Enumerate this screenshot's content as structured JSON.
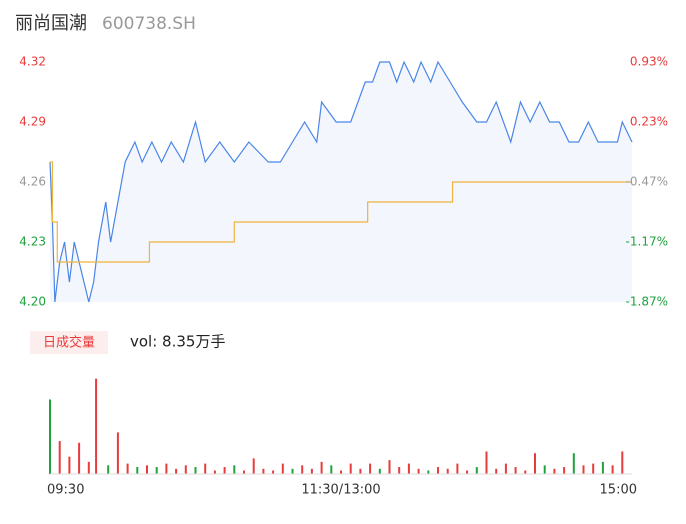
{
  "chart_data": [
    {
      "type": "line",
      "title": "丽尚国潮",
      "subtitle": "600738.SH",
      "xlim": [
        0,
        240
      ],
      "ylim": [
        4.2,
        4.32
      ],
      "yticks": [
        4.32,
        4.29,
        4.26,
        4.23,
        {
          "value": 4.2,
          "label": "4.20"
        }
      ],
      "ytick_colors": [
        "#e83b3b",
        "#e83b3b",
        "#999999",
        "#1fa23c",
        "#1fa23c"
      ],
      "y2lim": [
        -1.87,
        0.93
      ],
      "y2ticks": [
        {
          "value": 0.93,
          "label": "0.93%"
        },
        {
          "value": 0.23,
          "label": "0.23%"
        },
        {
          "value": -0.47,
          "label": "-0.47%"
        },
        {
          "value": -1.17,
          "label": "-1.17%"
        },
        {
          "value": -1.87,
          "label": "-1.87%"
        }
      ],
      "y2tick_colors": [
        "#e83b3b",
        "#e83b3b",
        "#999999",
        "#1fa23c",
        "#1fa23c"
      ],
      "grid": false,
      "series": [
        {
          "name": "price",
          "color": "#4a86e8",
          "area_color": "#f3f6fc",
          "x": [
            0,
            1,
            2,
            4,
            6,
            8,
            10,
            12,
            14,
            16,
            18,
            20,
            23,
            25,
            28,
            31,
            35,
            38,
            42,
            46,
            50,
            55,
            60,
            64,
            70,
            76,
            82,
            90,
            95,
            100,
            105,
            110,
            112,
            118,
            124,
            127,
            130,
            133,
            136,
            140,
            143,
            146,
            150,
            153,
            157,
            160,
            165,
            170,
            176,
            180,
            184,
            190,
            194,
            198,
            202,
            206,
            210,
            214,
            218,
            222,
            226,
            230,
            234,
            236,
            240
          ],
          "values": [
            4.27,
            4.24,
            4.2,
            4.22,
            4.23,
            4.21,
            4.23,
            4.22,
            4.21,
            4.2,
            4.21,
            4.23,
            4.25,
            4.23,
            4.25,
            4.27,
            4.28,
            4.27,
            4.28,
            4.27,
            4.28,
            4.27,
            4.29,
            4.27,
            4.28,
            4.27,
            4.28,
            4.27,
            4.27,
            4.28,
            4.29,
            4.28,
            4.3,
            4.29,
            4.29,
            4.3,
            4.31,
            4.31,
            4.32,
            4.32,
            4.31,
            4.32,
            4.31,
            4.32,
            4.31,
            4.32,
            4.31,
            4.3,
            4.29,
            4.29,
            4.3,
            4.28,
            4.3,
            4.29,
            4.3,
            4.29,
            4.29,
            4.28,
            4.28,
            4.29,
            4.28,
            4.28,
            4.28,
            4.29,
            4.28
          ]
        },
        {
          "name": "average",
          "color": "#f0b43c",
          "x": [
            0,
            1,
            3,
            40,
            41,
            75,
            76,
            130,
            131,
            165,
            166,
            240
          ],
          "values": [
            4.27,
            4.24,
            4.22,
            4.22,
            4.23,
            4.23,
            4.24,
            4.24,
            4.25,
            4.25,
            4.26,
            4.26
          ]
        }
      ]
    },
    {
      "type": "bar",
      "title": "日成交量",
      "annotation": "vol: 8.35万手",
      "xlim": [
        0,
        240
      ],
      "xticks": [
        {
          "value": 0,
          "label": "09:30"
        },
        {
          "value": 120,
          "label": "11:30/13:00"
        },
        {
          "value": 240,
          "label": "15:00"
        }
      ],
      "ylim": [
        0,
        3000
      ],
      "x": [
        0,
        4,
        8,
        12,
        16,
        19,
        24,
        28,
        32,
        36,
        40,
        44,
        48,
        52,
        56,
        60,
        64,
        68,
        72,
        76,
        80,
        84,
        88,
        92,
        96,
        100,
        104,
        108,
        112,
        116,
        120,
        124,
        128,
        132,
        136,
        140,
        144,
        148,
        152,
        156,
        160,
        164,
        168,
        172,
        176,
        180,
        184,
        188,
        192,
        196,
        200,
        204,
        208,
        212,
        216,
        220,
        224,
        228,
        232,
        236
      ],
      "values": [
        2150,
        950,
        500,
        900,
        350,
        2750,
        250,
        1200,
        300,
        200,
        250,
        200,
        300,
        150,
        250,
        200,
        300,
        100,
        200,
        250,
        100,
        450,
        150,
        100,
        300,
        150,
        250,
        150,
        350,
        250,
        100,
        300,
        150,
        300,
        150,
        400,
        200,
        300,
        150,
        100,
        200,
        150,
        300,
        100,
        200,
        650,
        150,
        300,
        200,
        100,
        600,
        250,
        150,
        200,
        600,
        250,
        300,
        350,
        250,
        650
      ],
      "colors": [
        "#1fa23c",
        "#e83b3b",
        "#e83b3b",
        "#e83b3b",
        "#e83b3b",
        "#e83b3b",
        "#1fa23c",
        "#e83b3b",
        "#e83b3b",
        "#1fa23c",
        "#e83b3b",
        "#1fa23c",
        "#e83b3b",
        "#e83b3b",
        "#e83b3b",
        "#1fa23c",
        "#e83b3b",
        "#e83b3b",
        "#e83b3b",
        "#1fa23c",
        "#e83b3b",
        "#e83b3b",
        "#e83b3b",
        "#e83b3b",
        "#e83b3b",
        "#1fa23c",
        "#e83b3b",
        "#e83b3b",
        "#e83b3b",
        "#1fa23c",
        "#e83b3b",
        "#e83b3b",
        "#e83b3b",
        "#e83b3b",
        "#1fa23c",
        "#e83b3b",
        "#e83b3b",
        "#e83b3b",
        "#e83b3b",
        "#1fa23c",
        "#e83b3b",
        "#e83b3b",
        "#e83b3b",
        "#e83b3b",
        "#1fa23c",
        "#e83b3b",
        "#e83b3b",
        "#e83b3b",
        "#e83b3b",
        "#e83b3b",
        "#e83b3b",
        "#1fa23c",
        "#e83b3b",
        "#e83b3b",
        "#1fa23c",
        "#e83b3b",
        "#e83b3b",
        "#1fa23c",
        "#e83b3b",
        "#e83b3b"
      ]
    }
  ]
}
